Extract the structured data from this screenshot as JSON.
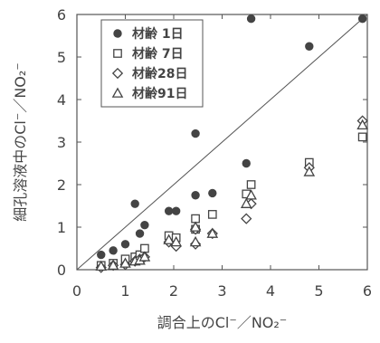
{
  "chart_data": {
    "type": "scatter",
    "xlabel": "調合上のCl⁻／NO₂⁻",
    "ylabel": "細孔溶液中のCl⁻／NO₂⁻",
    "xlim": [
      0,
      6
    ],
    "ylim": [
      0,
      6
    ],
    "x_ticks": [
      "0",
      "1",
      "2",
      "3",
      "4",
      "5",
      "6"
    ],
    "y_ticks": [
      "0",
      "1",
      "2",
      "3",
      "4",
      "5",
      "6"
    ],
    "grid": false,
    "reference_line": "y = x",
    "legend_position": "top-left",
    "series": [
      {
        "name": "材齢 1日",
        "marker": "filled-circle",
        "color": "#444444",
        "points": [
          [
            0.5,
            0.35
          ],
          [
            0.75,
            0.45
          ],
          [
            1.0,
            0.6
          ],
          [
            1.2,
            1.55
          ],
          [
            1.3,
            0.85
          ],
          [
            1.4,
            1.05
          ],
          [
            1.9,
            1.38
          ],
          [
            2.05,
            1.38
          ],
          [
            2.45,
            1.75
          ],
          [
            2.45,
            3.2
          ],
          [
            2.8,
            1.8
          ],
          [
            3.5,
            2.5
          ],
          [
            3.6,
            5.9
          ],
          [
            4.8,
            5.25
          ],
          [
            5.9,
            5.9
          ]
        ]
      },
      {
        "name": "材齢 7日",
        "marker": "open-square",
        "color": "#444444",
        "points": [
          [
            0.5,
            0.1
          ],
          [
            0.75,
            0.15
          ],
          [
            1.0,
            0.25
          ],
          [
            1.2,
            0.3
          ],
          [
            1.3,
            0.35
          ],
          [
            1.4,
            0.5
          ],
          [
            1.9,
            0.8
          ],
          [
            2.05,
            0.75
          ],
          [
            2.45,
            1.2
          ],
          [
            2.45,
            0.95
          ],
          [
            2.8,
            1.3
          ],
          [
            3.5,
            1.78
          ],
          [
            3.6,
            2.0
          ],
          [
            4.8,
            2.52
          ],
          [
            5.9,
            3.12
          ]
        ]
      },
      {
        "name": "材齢28日",
        "marker": "open-diamond",
        "color": "#444444",
        "points": [
          [
            0.5,
            0.05
          ],
          [
            0.75,
            0.1
          ],
          [
            1.0,
            0.12
          ],
          [
            1.2,
            0.2
          ],
          [
            1.3,
            0.25
          ],
          [
            1.4,
            0.3
          ],
          [
            1.9,
            0.65
          ],
          [
            2.05,
            0.55
          ],
          [
            2.45,
            0.6
          ],
          [
            2.45,
            0.95
          ],
          [
            2.8,
            0.85
          ],
          [
            3.5,
            1.2
          ],
          [
            3.6,
            1.55
          ],
          [
            4.8,
            2.4
          ],
          [
            5.9,
            3.5
          ]
        ]
      },
      {
        "name": "材齢91日",
        "marker": "open-triangle",
        "color": "#444444",
        "points": [
          [
            0.5,
            0.08
          ],
          [
            0.75,
            0.1
          ],
          [
            1.0,
            0.15
          ],
          [
            1.2,
            0.2
          ],
          [
            1.3,
            0.22
          ],
          [
            1.4,
            0.3
          ],
          [
            1.9,
            0.7
          ],
          [
            2.05,
            0.65
          ],
          [
            2.45,
            0.65
          ],
          [
            2.45,
            1.0
          ],
          [
            2.8,
            0.85
          ],
          [
            3.5,
            1.55
          ],
          [
            3.6,
            1.75
          ],
          [
            4.8,
            2.3
          ],
          [
            5.9,
            3.4
          ]
        ]
      }
    ]
  }
}
